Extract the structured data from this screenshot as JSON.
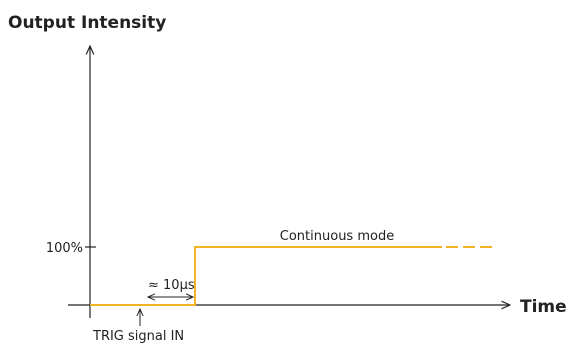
{
  "axes": {
    "y_label": "Output Intensity",
    "x_label": "Time",
    "level_label": "100%"
  },
  "annotations": {
    "mode": "Continuous mode",
    "delay": "≈ 10µs",
    "trigger": "TRIG signal IN"
  }
}
